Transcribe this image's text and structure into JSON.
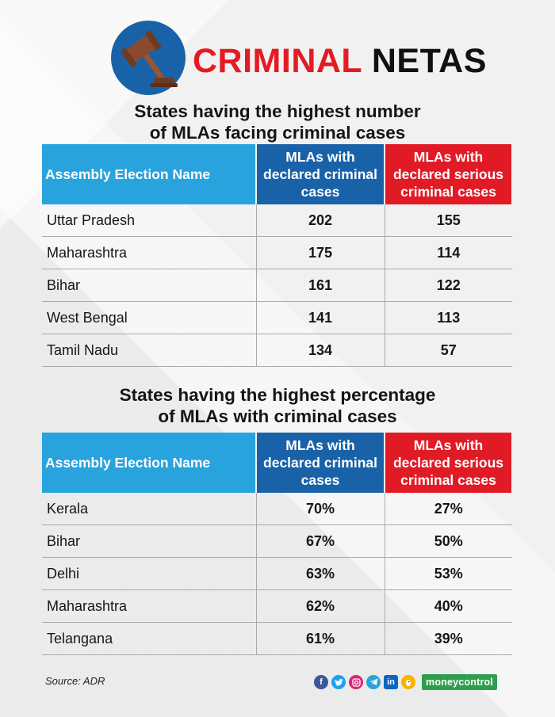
{
  "header": {
    "icon": "gavel-icon",
    "title_word1": "CRIMINAL",
    "title_word2": "NETAS",
    "colors": {
      "accent_red": "#e31b23",
      "icon_circle": "#1a62a8"
    }
  },
  "table1": {
    "title_line1": "States having the highest number",
    "title_line2": "of MLAs facing criminal cases",
    "headers": {
      "name": "Assembly Election Name",
      "declared": "MLAs with declared criminal cases",
      "serious": "MLAs with declared serious criminal cases"
    },
    "rows": [
      {
        "name": "Uttar Pradesh",
        "declared": "202",
        "serious": "155"
      },
      {
        "name": "Maharashtra",
        "declared": "175",
        "serious": "114"
      },
      {
        "name": "Bihar",
        "declared": "161",
        "serious": "122"
      },
      {
        "name": "West Bengal",
        "declared": "141",
        "serious": "113"
      },
      {
        "name": "Tamil Nadu",
        "declared": "134",
        "serious": "57"
      }
    ]
  },
  "table2": {
    "title_line1": "States having the highest percentage",
    "title_line2": "of MLAs with criminal cases",
    "headers": {
      "name": "Assembly Election Name",
      "declared": "MLAs with declared criminal cases",
      "serious": "MLAs with declared serious criminal cases"
    },
    "rows": [
      {
        "name": "Kerala",
        "declared": "70%",
        "serious": "27%"
      },
      {
        "name": "Bihar",
        "declared": "67%",
        "serious": "50%"
      },
      {
        "name": "Delhi",
        "declared": "63%",
        "serious": "53%"
      },
      {
        "name": "Maharashtra",
        "declared": "62%",
        "serious": "40%"
      },
      {
        "name": "Telangana",
        "declared": "61%",
        "serious": "39%"
      }
    ]
  },
  "header_colors": {
    "name": "#29a3dd",
    "declared": "#1a62a8",
    "serious": "#e11b26"
  },
  "footer": {
    "source": "Source: ADR",
    "social_icons": [
      "facebook-icon",
      "twitter-icon",
      "instagram-icon",
      "telegram-icon",
      "linkedin-icon",
      "koo-icon"
    ],
    "brand": "moneycontrol"
  }
}
